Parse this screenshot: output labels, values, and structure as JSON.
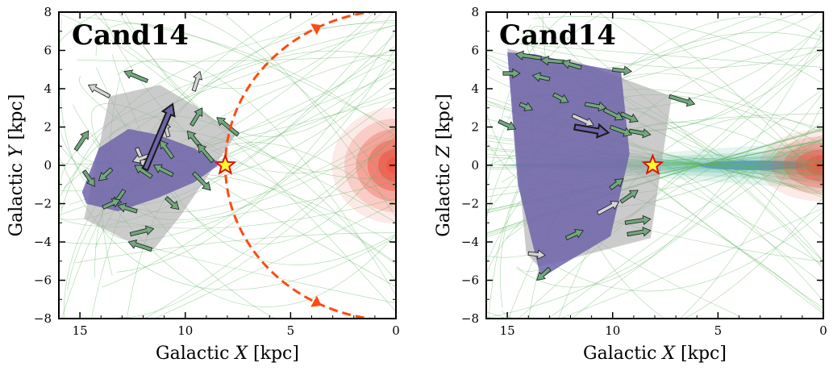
{
  "colors": {
    "orbit_green": "#5fb35f",
    "hull_gray": "#a9a9a9",
    "hull_purple": "#6e64aa",
    "arrow_green": "#6fa97c",
    "arrow_light": "#d4d4d4",
    "arrow_purple": "#6e64aa",
    "sun_fill": "#ffff33",
    "sun_edge": "#e01010",
    "orbit_dash": "#ff4b0f",
    "bulge": "#ee5544",
    "disk_teal": "#6fc0ab",
    "disk_blue": "#4a8fd0"
  },
  "chart_data": [
    {
      "type": "scatter",
      "title": "Cand14",
      "xlabel": "Galactic X [kpc]",
      "ylabel": "Galactic Y [kpc]",
      "xlabel_text": "Galactic ",
      "xlabel_var": "X",
      "xlabel_unit": " [kpc]",
      "ylabel_text": "Galactic ",
      "ylabel_var": "Y",
      "ylabel_unit": " [kpc]",
      "xlim": [
        16,
        0
      ],
      "ylim": [
        -8,
        8
      ],
      "xticks": [
        15,
        10,
        5,
        0
      ],
      "yticks": [
        -8,
        -6,
        -4,
        -2,
        0,
        2,
        4,
        6,
        8
      ],
      "sun": [
        8.1,
        0.0
      ],
      "galactic_center": [
        0,
        0
      ],
      "solar_orbit_radius": 8.1,
      "hull_gray": [
        [
          14.8,
          -2.8
        ],
        [
          13.6,
          3.6
        ],
        [
          11.2,
          4.2
        ],
        [
          9.4,
          3.0
        ],
        [
          7.6,
          1.6
        ],
        [
          10.2,
          -2.6
        ],
        [
          11.5,
          -4.4
        ],
        [
          13.0,
          -3.8
        ]
      ],
      "hull_purple": [
        [
          14.9,
          -1.4
        ],
        [
          14.1,
          0.9
        ],
        [
          12.7,
          1.9
        ],
        [
          11.3,
          1.6
        ],
        [
          9.6,
          0.9
        ],
        [
          8.3,
          0.1
        ],
        [
          9.6,
          -0.9
        ],
        [
          11.3,
          -1.7
        ],
        [
          13.2,
          -2.4
        ],
        [
          14.7,
          -2.0
        ]
      ],
      "arrows": [
        {
          "x": 13.6,
          "y": 3.6,
          "dx": 1.0,
          "dy": 0.6,
          "kind": "light"
        },
        {
          "x": 11.8,
          "y": 4.4,
          "dx": 1.1,
          "dy": 0.5,
          "kind": "green"
        },
        {
          "x": 9.6,
          "y": 3.9,
          "dx": -0.3,
          "dy": 1.0,
          "kind": "light"
        },
        {
          "x": 9.7,
          "y": 2.1,
          "dx": -0.5,
          "dy": 0.9,
          "kind": "green"
        },
        {
          "x": 10.8,
          "y": 1.5,
          "dx": 0.2,
          "dy": 0.8,
          "kind": "light"
        },
        {
          "x": 7.5,
          "y": 1.6,
          "dx": 1.0,
          "dy": 0.9,
          "kind": "green"
        },
        {
          "x": 15.2,
          "y": 0.8,
          "dx": -0.6,
          "dy": 1.0,
          "kind": "green"
        },
        {
          "x": 14.8,
          "y": -0.3,
          "dx": -0.5,
          "dy": -0.8,
          "kind": "green"
        },
        {
          "x": 12.3,
          "y": 0.9,
          "dx": -0.4,
          "dy": -1.0,
          "kind": "light"
        },
        {
          "x": 13.5,
          "y": -0.2,
          "dx": 0.6,
          "dy": -0.6,
          "kind": "green"
        },
        {
          "x": 12.9,
          "y": -1.3,
          "dx": 0.5,
          "dy": -0.8,
          "kind": "green"
        },
        {
          "x": 11.6,
          "y": -0.6,
          "dx": 0.8,
          "dy": 0.6,
          "kind": "green"
        },
        {
          "x": 10.6,
          "y": -0.5,
          "dx": 0.9,
          "dy": 0.5,
          "kind": "green"
        },
        {
          "x": 9.6,
          "y": -0.4,
          "dx": -0.8,
          "dy": -0.9,
          "kind": "green"
        },
        {
          "x": 10.9,
          "y": -1.7,
          "dx": -0.6,
          "dy": -0.6,
          "kind": "green"
        },
        {
          "x": 12.3,
          "y": -2.4,
          "dx": 0.9,
          "dy": 0.3,
          "kind": "green"
        },
        {
          "x": 13.9,
          "y": -2.2,
          "dx": -0.8,
          "dy": 0.4,
          "kind": "green"
        },
        {
          "x": 12.6,
          "y": -3.6,
          "dx": -1.1,
          "dy": 0.3,
          "kind": "green"
        },
        {
          "x": 11.6,
          "y": -4.4,
          "dx": 1.1,
          "dy": 0.4,
          "kind": "green"
        },
        {
          "x": 10.6,
          "y": 0.4,
          "dx": 0.6,
          "dy": 0.9,
          "kind": "green"
        },
        {
          "x": 11.5,
          "y": 0.6,
          "dx": 1.0,
          "dy": -0.4,
          "kind": "light"
        },
        {
          "x": 9.3,
          "y": 1.0,
          "dx": 0.6,
          "dy": 0.8,
          "kind": "green"
        },
        {
          "x": 8.7,
          "y": 0.2,
          "dx": 0.7,
          "dy": 0.9,
          "kind": "green"
        }
      ],
      "mean_arrow": {
        "x": 11.9,
        "y": -0.2,
        "dx": -1.3,
        "dy": 3.4
      },
      "orbit_seed": 7
    },
    {
      "type": "scatter",
      "title": "Cand14",
      "xlabel": "Galactic X [kpc]",
      "ylabel": "Galactic Z [kpc]",
      "xlabel_text": "Galactic ",
      "xlabel_var": "X",
      "xlabel_unit": " [kpc]",
      "ylabel_text": "Galactic ",
      "ylabel_var": "Z",
      "ylabel_unit": " [kpc]",
      "xlim": [
        16,
        0
      ],
      "ylim": [
        -8,
        8
      ],
      "xticks": [
        15,
        10,
        5,
        0
      ],
      "yticks": [
        -8,
        -6,
        -4,
        -2,
        0,
        2,
        4,
        6,
        8
      ],
      "sun": [
        8.1,
        0.0
      ],
      "galactic_center": [
        0,
        0
      ],
      "hull_gray": [
        [
          15.0,
          6.1
        ],
        [
          13.3,
          5.6
        ],
        [
          11.9,
          5.5
        ],
        [
          7.2,
          3.6
        ],
        [
          8.2,
          -3.8
        ],
        [
          13.5,
          -5.3
        ],
        [
          14.1,
          -4.6
        ]
      ],
      "hull_purple": [
        [
          15.0,
          5.9
        ],
        [
          13.7,
          5.8
        ],
        [
          12.1,
          5.4
        ],
        [
          9.6,
          4.9
        ],
        [
          9.2,
          0.6
        ],
        [
          10.1,
          -3.7
        ],
        [
          12.4,
          -5.2
        ],
        [
          13.4,
          -5.9
        ],
        [
          14.5,
          -1.0
        ]
      ],
      "arrows": [
        {
          "x": 13.4,
          "y": 5.6,
          "dx": 1.2,
          "dy": 0.2,
          "kind": "green"
        },
        {
          "x": 12.3,
          "y": 5.4,
          "dx": 1.1,
          "dy": 0.1,
          "kind": "green"
        },
        {
          "x": 11.5,
          "y": 5.1,
          "dx": 0.9,
          "dy": 0.3,
          "kind": "green"
        },
        {
          "x": 10.0,
          "y": 5.0,
          "dx": -0.9,
          "dy": -0.1,
          "kind": "green"
        },
        {
          "x": 15.2,
          "y": 4.8,
          "dx": -0.8,
          "dy": 0.0,
          "kind": "green"
        },
        {
          "x": 13.0,
          "y": 4.5,
          "dx": 0.8,
          "dy": 0.2,
          "kind": "green"
        },
        {
          "x": 12.8,
          "y": 3.7,
          "dx": -0.7,
          "dy": -0.4,
          "kind": "green"
        },
        {
          "x": 14.4,
          "y": 3.2,
          "dx": -0.6,
          "dy": -0.3,
          "kind": "green"
        },
        {
          "x": 11.3,
          "y": 3.2,
          "dx": -1.0,
          "dy": -0.2,
          "kind": "green"
        },
        {
          "x": 10.4,
          "y": 2.9,
          "dx": -0.9,
          "dy": -0.5,
          "kind": "green"
        },
        {
          "x": 9.6,
          "y": 2.7,
          "dx": -0.8,
          "dy": -0.4,
          "kind": "green"
        },
        {
          "x": 7.3,
          "y": 3.6,
          "dx": -1.2,
          "dy": -0.4,
          "kind": "green"
        },
        {
          "x": 11.9,
          "y": 2.6,
          "dx": -1.0,
          "dy": -0.5,
          "kind": "light"
        },
        {
          "x": 10.1,
          "y": 2.0,
          "dx": -1.0,
          "dy": -0.4,
          "kind": "green"
        },
        {
          "x": 9.2,
          "y": 1.8,
          "dx": -1.0,
          "dy": -0.2,
          "kind": "green"
        },
        {
          "x": 15.4,
          "y": 2.3,
          "dx": -0.8,
          "dy": -0.4,
          "kind": "green"
        },
        {
          "x": 10.1,
          "y": -1.2,
          "dx": -0.6,
          "dy": 0.5,
          "kind": "green"
        },
        {
          "x": 9.6,
          "y": -1.9,
          "dx": -0.8,
          "dy": 0.6,
          "kind": "green"
        },
        {
          "x": 10.7,
          "y": -2.5,
          "dx": -1.0,
          "dy": 0.6,
          "kind": "light"
        },
        {
          "x": 9.4,
          "y": -3.0,
          "dx": -1.2,
          "dy": 0.2,
          "kind": "green"
        },
        {
          "x": 9.3,
          "y": -3.6,
          "dx": -1.1,
          "dy": 0.2,
          "kind": "green"
        },
        {
          "x": 12.2,
          "y": -3.8,
          "dx": -0.8,
          "dy": 0.4,
          "kind": "green"
        },
        {
          "x": 14.0,
          "y": -4.6,
          "dx": -0.8,
          "dy": -0.1,
          "kind": "light"
        },
        {
          "x": 13.0,
          "y": -5.4,
          "dx": 0.6,
          "dy": -0.6,
          "kind": "green"
        }
      ],
      "mean_arrow": {
        "x": 11.8,
        "y": 2.0,
        "dx": -1.6,
        "dy": -0.3
      },
      "orbit_seed": 23
    }
  ]
}
